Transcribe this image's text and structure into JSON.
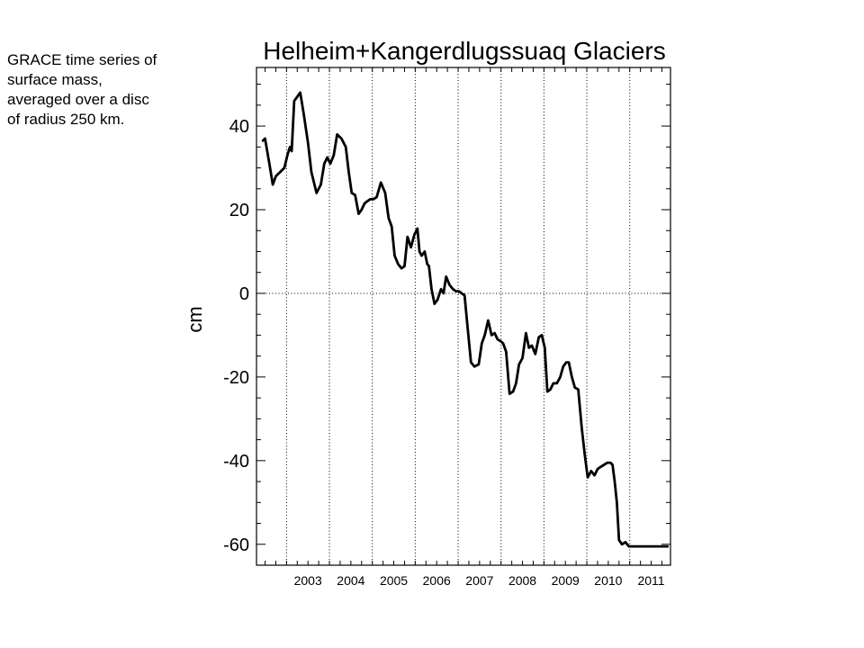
{
  "annotation": "GRACE time series of\nsurface mass,\naveraged over a disc\nof radius 250 km.",
  "chart_data": {
    "type": "line",
    "title": "Helheim+Kangerdlugssuaq Glaciers",
    "xlabel": "",
    "ylabel": "cm",
    "xlim": [
      2002.3,
      2011.95
    ],
    "ylim": [
      -65,
      54
    ],
    "yticks": [
      40,
      20,
      0,
      -20,
      -40,
      -60
    ],
    "ytick_labels": [
      "40",
      "20",
      "0",
      "-20",
      "-40",
      "-60"
    ],
    "xticks": [
      2003,
      2004,
      2005,
      2006,
      2007,
      2008,
      2009,
      2010,
      2011
    ],
    "xtick_labels": [
      "2003",
      "2004",
      "2005",
      "2006",
      "2007",
      "2008",
      "2009",
      "2010",
      "2011"
    ],
    "grid": "dotted vertical at year boundaries, dotted horizontal at 0",
    "line_color": "#000000",
    "series": [
      {
        "x": [
          2002.45,
          2002.5,
          2002.6,
          2002.68,
          2002.75,
          2002.85,
          2002.95,
          2003.02,
          2003.08,
          2003.12,
          2003.18,
          2003.25,
          2003.32,
          2003.4,
          2003.5,
          2003.58,
          2003.7,
          2003.8,
          2003.88,
          2003.95,
          2004.02,
          2004.1,
          2004.18,
          2004.28,
          2004.38,
          2004.45,
          2004.52,
          2004.6,
          2004.68,
          2004.75,
          2004.82,
          2004.88,
          2004.95,
          2005.02,
          2005.1,
          2005.2,
          2005.3,
          2005.38,
          2005.45,
          2005.52,
          2005.6,
          2005.68,
          2005.75,
          2005.82,
          2005.9,
          2005.98,
          2006.05,
          2006.1,
          2006.15,
          2006.22,
          2006.28,
          2006.32,
          2006.38,
          2006.45,
          2006.52,
          2006.6,
          2006.66,
          2006.72,
          2006.8,
          2006.88,
          2006.95,
          2007.02,
          2007.08,
          2007.15,
          2007.22,
          2007.3,
          2007.38,
          2007.48,
          2007.55,
          2007.62,
          2007.7,
          2007.78,
          2007.85,
          2007.92,
          2008.0,
          2008.05,
          2008.12,
          2008.2,
          2008.28,
          2008.35,
          2008.42,
          2008.5,
          2008.58,
          2008.65,
          2008.72,
          2008.8,
          2008.88,
          2008.95,
          2009.02,
          2009.08,
          2009.15,
          2009.22,
          2009.3,
          2009.38,
          2009.45,
          2009.52,
          2009.58,
          2009.65,
          2009.72,
          2009.8,
          2009.88,
          2009.95,
          2010.02,
          2010.1,
          2010.18,
          2010.25,
          2010.32,
          2010.4,
          2010.48,
          2010.55,
          2010.6,
          2010.65,
          2010.7,
          2010.75,
          2010.82,
          2010.9,
          2010.98,
          2011.05,
          2011.12,
          2011.2,
          2011.28,
          2011.35,
          2011.42,
          2011.5,
          2011.55,
          2011.6,
          2011.68,
          2011.75,
          2011.82,
          2011.88
        ],
        "y": [
          36.5,
          37,
          31,
          26,
          28,
          29,
          30,
          33,
          35,
          34,
          46,
          47,
          48,
          43,
          36,
          29,
          24,
          26,
          31,
          32.5,
          31,
          33,
          38,
          37,
          35,
          29,
          24,
          23.5,
          19,
          20,
          21.5,
          22,
          22.5,
          22.5,
          23,
          26.5,
          24,
          18,
          16,
          9,
          7,
          6,
          6.5,
          13.5,
          11,
          14,
          15.5,
          10,
          9,
          10,
          7,
          6.5,
          1,
          -2.5,
          -1.5,
          1,
          0,
          4,
          2,
          1,
          0.5,
          0.5,
          0,
          -0.5,
          -8,
          -16.5,
          -17.5,
          -17,
          -12,
          -10,
          -6.5,
          -10,
          -9.5,
          -11,
          -11.5,
          -12,
          -14,
          -24,
          -23.5,
          -21.5,
          -17,
          -15.5,
          -9.5,
          -13,
          -12.5,
          -14.5,
          -10.5,
          -10,
          -13,
          -23.5,
          -23,
          -21.5,
          -21.5,
          -20,
          -17.5,
          -16.5,
          -16.5,
          -20,
          -22.5,
          -23,
          -32,
          -38.5,
          -44,
          -42.5,
          -43.5,
          -42,
          -41.5,
          -41,
          -40.5,
          -40.5,
          -41,
          -45,
          -50,
          -59,
          -60,
          -59.5,
          -60.5,
          -60.5,
          -60.5,
          -60.5,
          -60.5,
          -60.5,
          -60.5,
          -60.5,
          -60.5,
          -60.5,
          -60.5,
          -60.5,
          -60.5,
          -60.5
        ]
      }
    ]
  }
}
